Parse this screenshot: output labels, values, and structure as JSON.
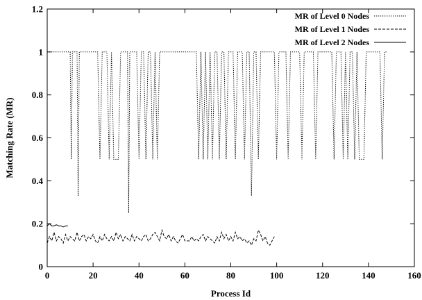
{
  "chart_data": {
    "type": "line",
    "xlabel": "Process Id",
    "ylabel": "Matching Rate (MR)",
    "xlim": [
      0,
      160
    ],
    "ylim": [
      0,
      1.2
    ],
    "xticks": [
      0,
      20,
      40,
      60,
      80,
      100,
      120,
      140,
      160
    ],
    "yticks": [
      0,
      0.2,
      0.4,
      0.6,
      0.8,
      1,
      1.2
    ],
    "xtick_labels": [
      "0",
      "20",
      "40",
      "60",
      "80",
      "100",
      "120",
      "140",
      "160"
    ],
    "ytick_labels": [
      "0",
      "0.2",
      "0.4",
      "0.6",
      "0.8",
      "1",
      "1.2"
    ],
    "legend_position": "top-right",
    "grid": false,
    "series": [
      {
        "name": "MR of Level 2 Nodes",
        "style": "solid",
        "x": [
          0,
          1,
          2,
          3,
          4,
          5,
          6,
          7,
          8,
          9
        ],
        "y": [
          0.19,
          0.2,
          0.19,
          0.19,
          0.195,
          0.19,
          0.19,
          0.185,
          0.19,
          0.19
        ]
      },
      {
        "name": "MR of Level 1 Nodes",
        "style": "dashed",
        "x": [
          0,
          1,
          2,
          3,
          4,
          5,
          6,
          7,
          8,
          9,
          10,
          11,
          12,
          13,
          14,
          15,
          16,
          17,
          18,
          19,
          20,
          21,
          22,
          23,
          24,
          25,
          26,
          27,
          28,
          29,
          30,
          31,
          32,
          33,
          34,
          35,
          36,
          37,
          38,
          39,
          40,
          41,
          42,
          43,
          44,
          45,
          46,
          47,
          48,
          49,
          50,
          51,
          52,
          53,
          54,
          55,
          56,
          57,
          58,
          59,
          60,
          61,
          62,
          63,
          64,
          65,
          66,
          67,
          68,
          69,
          70,
          71,
          72,
          73,
          74,
          75,
          76,
          77,
          78,
          79,
          80,
          81,
          82,
          83,
          84,
          85,
          86,
          87,
          88,
          89,
          90,
          91,
          92,
          93,
          94,
          95,
          96,
          97,
          98,
          99
        ],
        "y": [
          0.11,
          0.14,
          0.12,
          0.16,
          0.12,
          0.14,
          0.13,
          0.11,
          0.15,
          0.12,
          0.14,
          0.13,
          0.12,
          0.16,
          0.12,
          0.14,
          0.15,
          0.12,
          0.14,
          0.13,
          0.15,
          0.12,
          0.11,
          0.14,
          0.12,
          0.15,
          0.13,
          0.12,
          0.14,
          0.12,
          0.16,
          0.13,
          0.15,
          0.12,
          0.14,
          0.13,
          0.12,
          0.15,
          0.12,
          0.14,
          0.13,
          0.12,
          0.14,
          0.15,
          0.12,
          0.13,
          0.15,
          0.16,
          0.14,
          0.12,
          0.17,
          0.14,
          0.13,
          0.15,
          0.12,
          0.14,
          0.12,
          0.11,
          0.13,
          0.15,
          0.12,
          0.12,
          0.12,
          0.14,
          0.12,
          0.13,
          0.12,
          0.14,
          0.15,
          0.12,
          0.14,
          0.13,
          0.12,
          0.11,
          0.14,
          0.12,
          0.16,
          0.13,
          0.15,
          0.12,
          0.14,
          0.12,
          0.16,
          0.13,
          0.14,
          0.12,
          0.13,
          0.11,
          0.12,
          0.1,
          0.13,
          0.12,
          0.17,
          0.15,
          0.12,
          0.14,
          0.11,
          0.1,
          0.12,
          0.14
        ]
      },
      {
        "name": "MR of Level 0 Nodes",
        "style": "dotted",
        "x": [
          0,
          10,
          10.5,
          11,
          12,
          13,
          13.5,
          14,
          15,
          22,
          23,
          24,
          25,
          26,
          27,
          28,
          29,
          30,
          31,
          32,
          33,
          34,
          35,
          35.5,
          36,
          37,
          38,
          39,
          40,
          41,
          42,
          43,
          44,
          45,
          46,
          47,
          48,
          49,
          65,
          66,
          67,
          68,
          69,
          70,
          71,
          72,
          73,
          74,
          75,
          76,
          77,
          78,
          79,
          80,
          81,
          82,
          83,
          84,
          85,
          86,
          87,
          88,
          89,
          90,
          91,
          92,
          93,
          94,
          95,
          96,
          97,
          98,
          99,
          100,
          101,
          102,
          103,
          104,
          105,
          106,
          107,
          108,
          109,
          110,
          111,
          112,
          113,
          114,
          115,
          116,
          117,
          118,
          119,
          120,
          121,
          122,
          123,
          124,
          125,
          126,
          127,
          128,
          129,
          130,
          131,
          132,
          133,
          134,
          135,
          136,
          137,
          138,
          139,
          140,
          141,
          142,
          143,
          144,
          145,
          146,
          147,
          148
        ],
        "y": [
          1,
          1,
          0.5,
          1,
          1,
          1,
          0.33,
          1,
          1,
          1,
          0.5,
          1,
          1,
          1,
          0.5,
          1,
          0.5,
          0.5,
          0.5,
          1,
          1,
          1,
          1,
          0.25,
          1,
          1,
          1,
          1,
          0.5,
          1,
          1,
          0.5,
          1,
          1,
          0.5,
          1,
          0.5,
          1,
          1,
          0.5,
          1,
          0.5,
          1,
          0.5,
          1,
          0.5,
          1,
          1,
          0.5,
          1,
          1,
          0.5,
          1,
          1,
          1,
          0.5,
          1,
          1,
          1,
          0.5,
          1,
          1,
          0.33,
          1,
          1,
          0.5,
          1,
          1,
          1,
          1,
          1,
          1,
          1,
          0.5,
          1,
          1,
          1,
          1,
          0.5,
          1,
          1,
          1,
          1,
          1,
          0.5,
          1,
          1,
          1,
          1,
          1,
          0.5,
          1,
          1,
          1,
          1,
          1,
          1,
          1,
          0.5,
          1,
          1,
          1,
          0.5,
          1,
          0.5,
          1,
          1,
          0.5,
          1,
          0.5,
          0.5,
          0.5,
          1,
          1,
          1,
          1,
          1,
          1,
          1,
          0.5,
          1,
          1
        ]
      }
    ]
  }
}
